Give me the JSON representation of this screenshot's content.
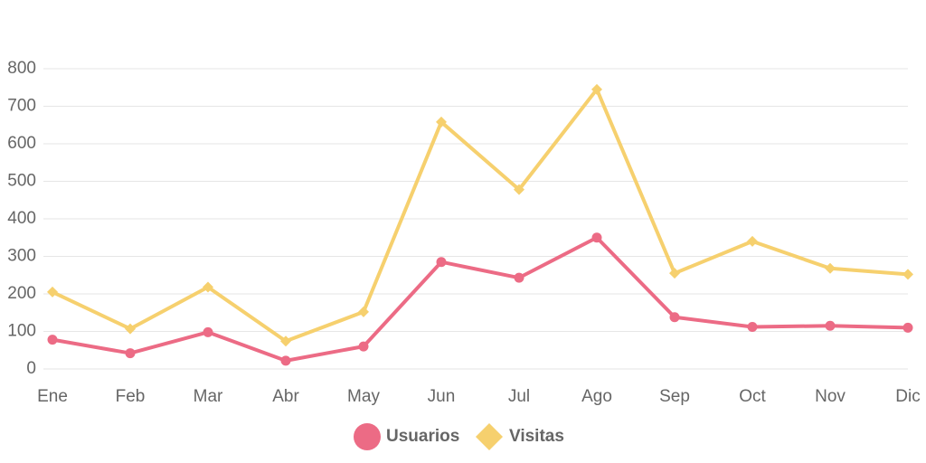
{
  "chart_data": {
    "type": "line",
    "title": "",
    "xlabel": "",
    "ylabel": "",
    "categories": [
      "Ene",
      "Feb",
      "Mar",
      "Abr",
      "May",
      "Jun",
      "Jul",
      "Ago",
      "Sep",
      "Oct",
      "Nov",
      "Dic"
    ],
    "ylim": [
      0,
      800
    ],
    "yticks": [
      0,
      100,
      200,
      300,
      400,
      500,
      600,
      700,
      800
    ],
    "grid": true,
    "legend_position": "bottom",
    "series": [
      {
        "name": "Usuarios",
        "color": "#ec6b85",
        "marker": "circle",
        "values": [
          78,
          42,
          98,
          22,
          60,
          285,
          243,
          350,
          138,
          112,
          115,
          110
        ]
      },
      {
        "name": "Visitas",
        "color": "#f6d06e",
        "marker": "diamond",
        "values": [
          205,
          107,
          218,
          74,
          152,
          658,
          478,
          745,
          255,
          340,
          268,
          252
        ]
      }
    ]
  }
}
